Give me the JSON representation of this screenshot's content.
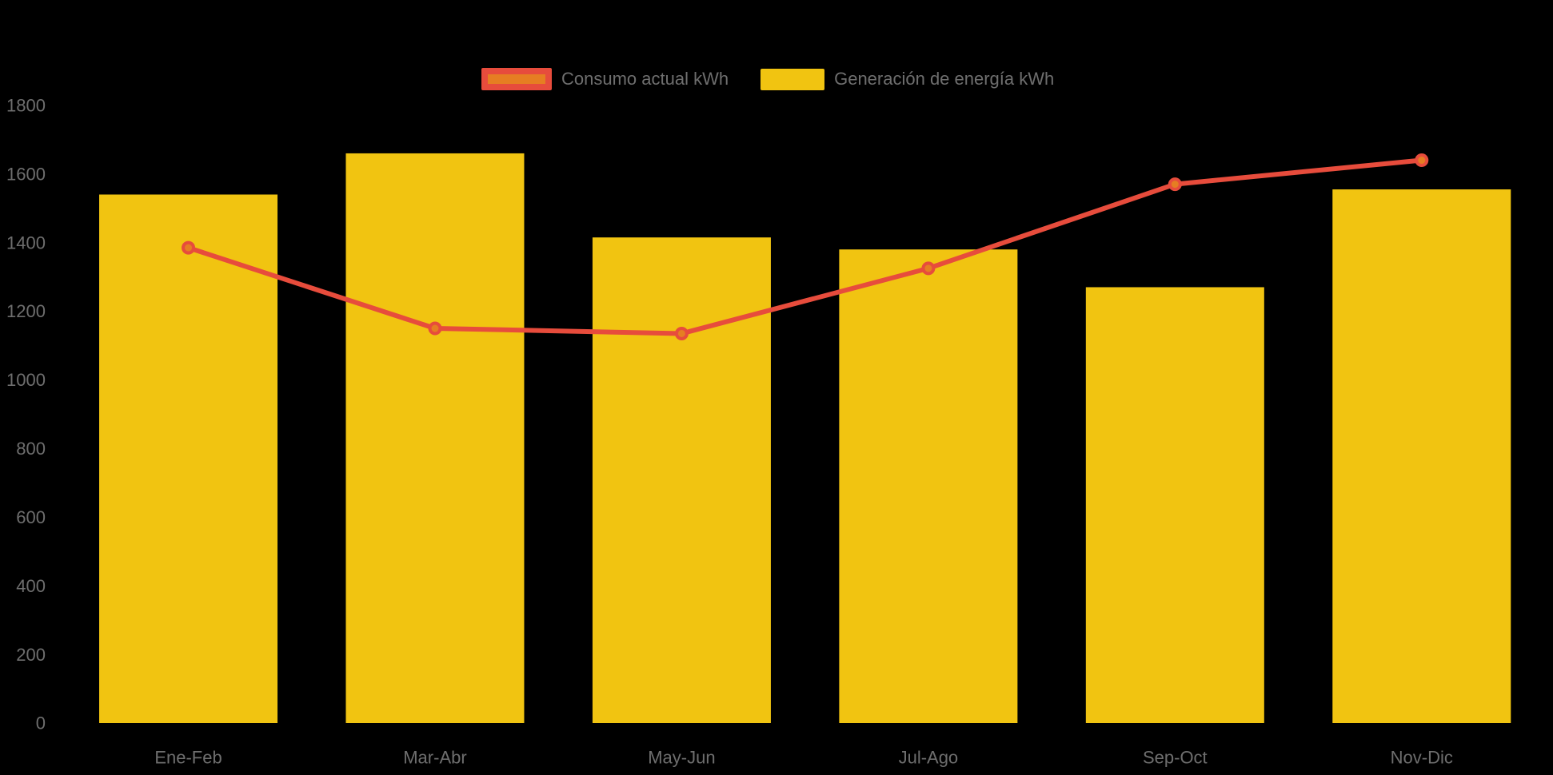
{
  "legend": {
    "consumo_label": "Consumo actual kWh",
    "generacion_label": "Generación de energía kWh"
  },
  "colors": {
    "background": "#000000",
    "bar_fill": "#F1C411",
    "line_stroke": "#E74C3C",
    "marker_fill": "#E67E22",
    "axis_text": "#6E6E6E"
  },
  "chart_data": {
    "type": "combo",
    "subtypes": [
      "bar",
      "line"
    ],
    "title": "",
    "xlabel": "",
    "ylabel": "",
    "categories": [
      "Ene-Feb",
      "Mar-Abr",
      "May-Jun",
      "Jul-Ago",
      "Sep-Oct",
      "Nov-Dic"
    ],
    "series": [
      {
        "name": "Consumo actual kWh",
        "type": "line",
        "color": "#E74C3C",
        "marker_color": "#E67E22",
        "values": [
          1385,
          1150,
          1135,
          1325,
          1570,
          1640
        ]
      },
      {
        "name": "Generación de energía kWh",
        "type": "bar",
        "color": "#F1C411",
        "values": [
          1540,
          1660,
          1415,
          1380,
          1270,
          1555
        ]
      }
    ],
    "ylim": [
      0,
      1800
    ],
    "yticks": [
      0,
      200,
      400,
      600,
      800,
      1000,
      1200,
      1400,
      1600,
      1800
    ],
    "grid": false,
    "legend_position": "top-center",
    "background": "#000000"
  }
}
